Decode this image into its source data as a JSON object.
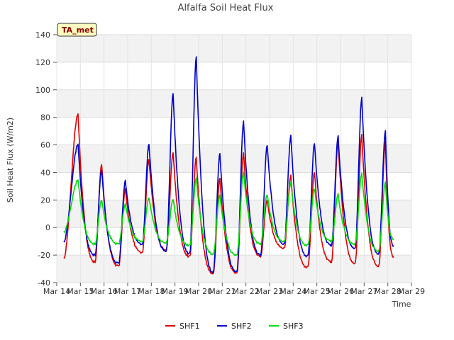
{
  "chart_data": {
    "type": "line",
    "title": "Alfalfa Soil Heat Flux",
    "xlabel": "Time",
    "ylabel": "Soil Heat Flux (W/m2)",
    "xlim": [
      14,
      29
    ],
    "ylim": [
      -40,
      140
    ],
    "x_ticks": [
      14,
      15,
      16,
      17,
      18,
      19,
      20,
      21,
      22,
      23,
      24,
      25,
      26,
      27,
      28,
      29
    ],
    "x_tick_labels": [
      "Mar 14",
      "Mar 15",
      "Mar 16",
      "Mar 17",
      "Mar 18",
      "Mar 19",
      "Mar 20",
      "Mar 21",
      "Mar 22",
      "Mar 23",
      "Mar 24",
      "Mar 25",
      "Mar 26",
      "Mar 27",
      "Mar 28",
      "Mar 29"
    ],
    "y_ticks": [
      -40,
      -20,
      0,
      20,
      40,
      60,
      80,
      100,
      120,
      140
    ],
    "y_tick_labels": [
      "-40",
      "-20",
      "0",
      "20",
      "40",
      "60",
      "80",
      "100",
      "120",
      "140"
    ],
    "annotation": "TA_met",
    "legend_position": "bottom-center",
    "x_start": 14.3,
    "x_end": 28.25,
    "peak_x": [
      14.9,
      15.9,
      16.9,
      17.9,
      18.92,
      19.9,
      20.9,
      21.9,
      22.9,
      23.9,
      24.9,
      25.9,
      26.9,
      27.9
    ],
    "series": [
      {
        "name": "SHF1",
        "color": "#dd0000",
        "start": -22,
        "end": -21,
        "peaks": [
          82,
          46,
          28,
          50,
          55,
          51,
          36,
          54,
          20,
          38,
          40,
          62,
          67,
          62
        ],
        "troughs": [
          -25,
          -28,
          -18,
          -16,
          -21,
          -33,
          -33,
          -21,
          -15,
          -29,
          -25,
          -26,
          -28,
          -27
        ]
      },
      {
        "name": "SHF2",
        "color": "#0000cc",
        "start": -10,
        "end": -13,
        "peaks": [
          60,
          42,
          34,
          61,
          98,
          124,
          54,
          77,
          60,
          67,
          61,
          66,
          94,
          70
        ],
        "troughs": [
          -20,
          -26,
          -12,
          -17,
          -19,
          -32,
          -32,
          -20,
          -12,
          -21,
          -13,
          -15,
          -19,
          -19
        ]
      },
      {
        "name": "SHF3",
        "color": "#00dd00",
        "start": -3,
        "end": -8,
        "peaks": [
          34,
          20,
          17,
          22,
          21,
          36,
          24,
          40,
          24,
          33,
          28,
          24,
          39,
          33
        ],
        "troughs": [
          -12,
          -12,
          -10,
          -11,
          -13,
          -19,
          -20,
          -12,
          -10,
          -13,
          -10,
          -12,
          -17,
          -15
        ]
      }
    ]
  }
}
